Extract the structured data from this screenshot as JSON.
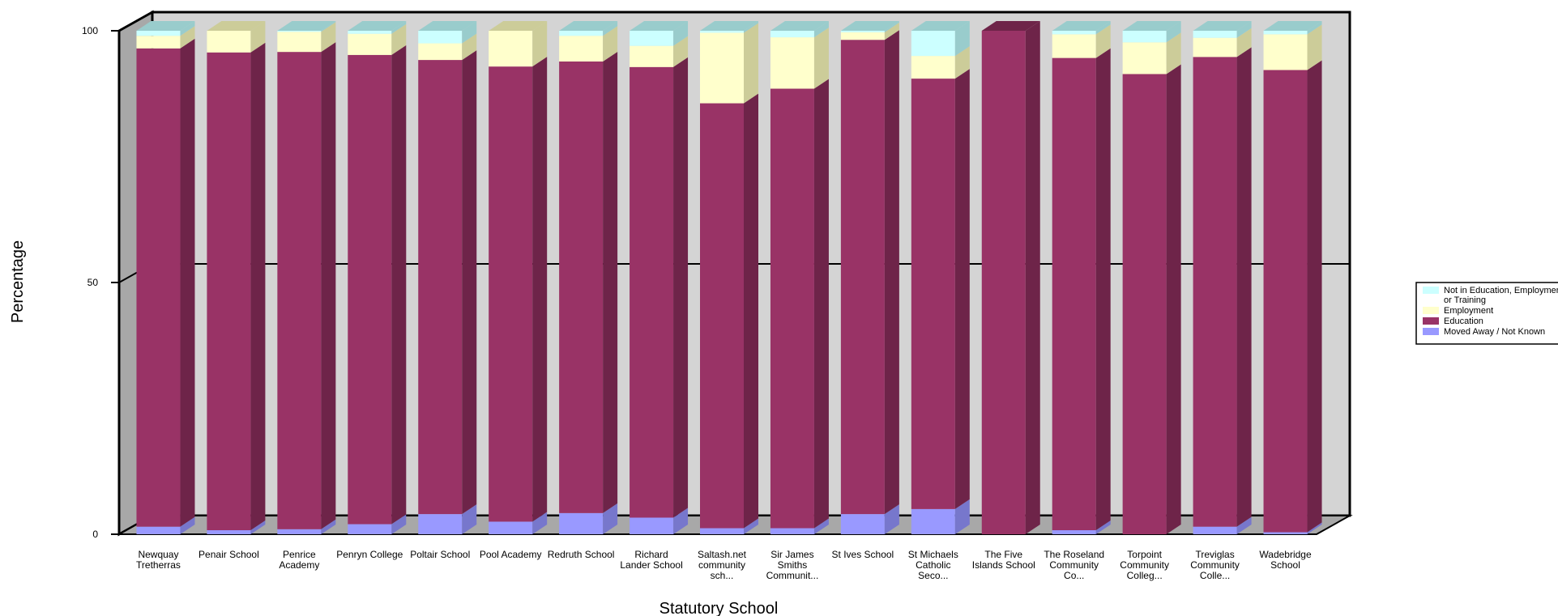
{
  "chart_data": {
    "type": "bar",
    "stacked": true,
    "three_d": true,
    "xlabel": "Statutory School",
    "ylabel": "Percentage",
    "ylim": [
      0,
      100
    ],
    "yticks": [
      0,
      50,
      100
    ],
    "grid": "horizontal at 50",
    "legend_position": "right",
    "categories": [
      [
        "Newquay",
        "Tretherras"
      ],
      [
        "Penair School"
      ],
      [
        "Penrice",
        "Academy"
      ],
      [
        "Penryn College"
      ],
      [
        "Poltair School"
      ],
      [
        "Pool Academy"
      ],
      [
        "Redruth School"
      ],
      [
        "Richard",
        "Lander School"
      ],
      [
        "Saltash.net",
        "community",
        "sch..."
      ],
      [
        "Sir James",
        "Smiths",
        "Communit..."
      ],
      [
        "St Ives School"
      ],
      [
        "St Michaels",
        "Catholic",
        "Seco..."
      ],
      [
        "The Five",
        "Islands School"
      ],
      [
        "The Roseland",
        "Community",
        "Co..."
      ],
      [
        "Torpoint",
        "Community",
        "Colleg..."
      ],
      [
        "Treviglas",
        "Community",
        "Colle..."
      ],
      [
        "Wadebridge",
        "School"
      ]
    ],
    "series": [
      {
        "name": "Moved Away / Not Known",
        "color": "#9999ff",
        "side_color": "#7777cc",
        "values": [
          1.5,
          0.8,
          1.0,
          2.0,
          4.0,
          2.5,
          4.2,
          3.3,
          1.2,
          1.2,
          4.0,
          5.0,
          0.0,
          0.8,
          0.0,
          1.5,
          0.4
        ]
      },
      {
        "name": "Education",
        "color": "#993366",
        "side_color": "#6e2449",
        "values": [
          95.0,
          94.9,
          94.8,
          93.2,
          90.2,
          90.4,
          89.7,
          89.5,
          84.4,
          87.3,
          94.2,
          85.5,
          100.0,
          93.8,
          91.4,
          93.3,
          91.8
        ]
      },
      {
        "name": "Employment",
        "color": "#ffffcc",
        "side_color": "#cccc99",
        "values": [
          2.5,
          4.3,
          4.0,
          4.2,
          3.3,
          7.1,
          5.1,
          4.2,
          14.0,
          10.2,
          1.5,
          4.5,
          0.0,
          4.7,
          6.3,
          3.8,
          7.1
        ]
      },
      {
        "name": "Not in Education, Employment or Training",
        "name_lines": [
          "Not in Education, Employment",
          "or Training"
        ],
        "color": "#ccffff",
        "side_color": "#99cccc",
        "values": [
          1.0,
          0.0,
          0.2,
          0.6,
          2.5,
          0.0,
          1.0,
          3.0,
          0.4,
          1.3,
          0.3,
          5.0,
          0.0,
          0.7,
          2.3,
          1.4,
          0.7
        ]
      }
    ]
  }
}
